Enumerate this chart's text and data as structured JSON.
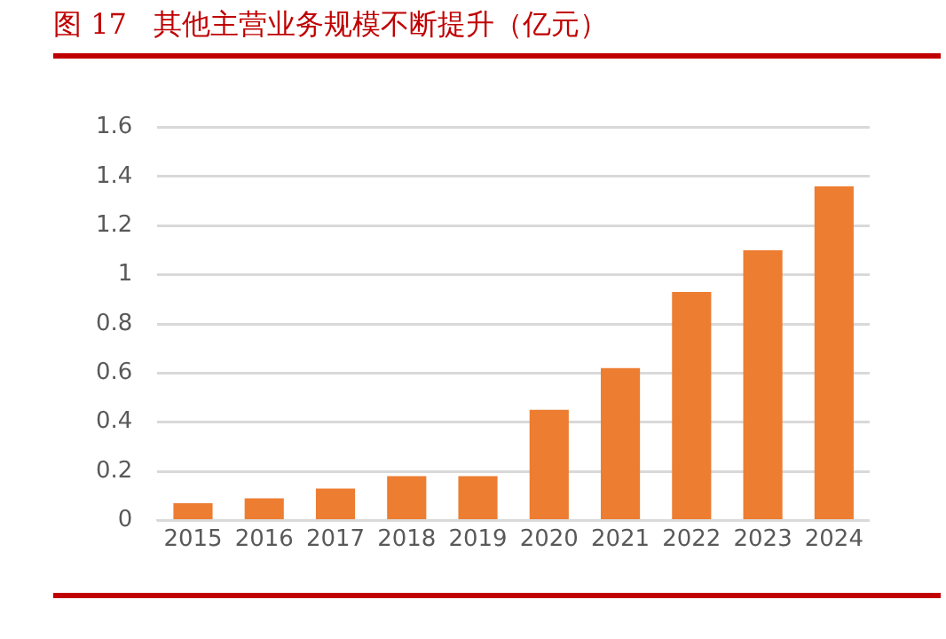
{
  "chart_data": {
    "type": "bar",
    "title": "图 17   其他主营业务规模不断提升（亿元）",
    "categories": [
      "2015",
      "2016",
      "2017",
      "2018",
      "2019",
      "2020",
      "2021",
      "2022",
      "2023",
      "2024"
    ],
    "values": [
      0.07,
      0.09,
      0.13,
      0.18,
      0.18,
      0.45,
      0.62,
      0.93,
      1.1,
      1.36
    ],
    "color": "#ed7d31",
    "ylim": [
      0,
      1.6
    ],
    "yticks": [
      0,
      0.2,
      0.4,
      0.6,
      0.8,
      1,
      1.2,
      1.4,
      1.6
    ],
    "grid": "y",
    "legend": false
  }
}
